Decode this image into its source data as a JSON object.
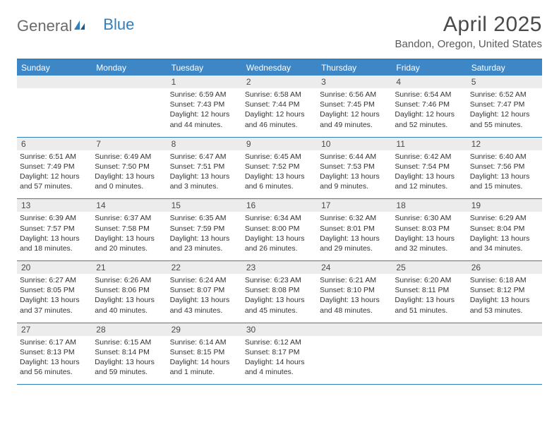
{
  "logo": {
    "part1": "General",
    "part2": "Blue"
  },
  "title": "April 2025",
  "location": "Bandon, Oregon, United States",
  "header_bg": "#3d87c7",
  "border_color": "#2f7fbf",
  "daynum_bg": "#ececec",
  "text_color": "#333333",
  "dow": [
    "Sunday",
    "Monday",
    "Tuesday",
    "Wednesday",
    "Thursday",
    "Friday",
    "Saturday"
  ],
  "weeks": [
    [
      {
        "n": "",
        "sr": "",
        "ss": "",
        "d1": "",
        "d2": ""
      },
      {
        "n": "",
        "sr": "",
        "ss": "",
        "d1": "",
        "d2": ""
      },
      {
        "n": "1",
        "sr": "Sunrise: 6:59 AM",
        "ss": "Sunset: 7:43 PM",
        "d1": "Daylight: 12 hours",
        "d2": "and 44 minutes."
      },
      {
        "n": "2",
        "sr": "Sunrise: 6:58 AM",
        "ss": "Sunset: 7:44 PM",
        "d1": "Daylight: 12 hours",
        "d2": "and 46 minutes."
      },
      {
        "n": "3",
        "sr": "Sunrise: 6:56 AM",
        "ss": "Sunset: 7:45 PM",
        "d1": "Daylight: 12 hours",
        "d2": "and 49 minutes."
      },
      {
        "n": "4",
        "sr": "Sunrise: 6:54 AM",
        "ss": "Sunset: 7:46 PM",
        "d1": "Daylight: 12 hours",
        "d2": "and 52 minutes."
      },
      {
        "n": "5",
        "sr": "Sunrise: 6:52 AM",
        "ss": "Sunset: 7:47 PM",
        "d1": "Daylight: 12 hours",
        "d2": "and 55 minutes."
      }
    ],
    [
      {
        "n": "6",
        "sr": "Sunrise: 6:51 AM",
        "ss": "Sunset: 7:49 PM",
        "d1": "Daylight: 12 hours",
        "d2": "and 57 minutes."
      },
      {
        "n": "7",
        "sr": "Sunrise: 6:49 AM",
        "ss": "Sunset: 7:50 PM",
        "d1": "Daylight: 13 hours",
        "d2": "and 0 minutes."
      },
      {
        "n": "8",
        "sr": "Sunrise: 6:47 AM",
        "ss": "Sunset: 7:51 PM",
        "d1": "Daylight: 13 hours",
        "d2": "and 3 minutes."
      },
      {
        "n": "9",
        "sr": "Sunrise: 6:45 AM",
        "ss": "Sunset: 7:52 PM",
        "d1": "Daylight: 13 hours",
        "d2": "and 6 minutes."
      },
      {
        "n": "10",
        "sr": "Sunrise: 6:44 AM",
        "ss": "Sunset: 7:53 PM",
        "d1": "Daylight: 13 hours",
        "d2": "and 9 minutes."
      },
      {
        "n": "11",
        "sr": "Sunrise: 6:42 AM",
        "ss": "Sunset: 7:54 PM",
        "d1": "Daylight: 13 hours",
        "d2": "and 12 minutes."
      },
      {
        "n": "12",
        "sr": "Sunrise: 6:40 AM",
        "ss": "Sunset: 7:56 PM",
        "d1": "Daylight: 13 hours",
        "d2": "and 15 minutes."
      }
    ],
    [
      {
        "n": "13",
        "sr": "Sunrise: 6:39 AM",
        "ss": "Sunset: 7:57 PM",
        "d1": "Daylight: 13 hours",
        "d2": "and 18 minutes."
      },
      {
        "n": "14",
        "sr": "Sunrise: 6:37 AM",
        "ss": "Sunset: 7:58 PM",
        "d1": "Daylight: 13 hours",
        "d2": "and 20 minutes."
      },
      {
        "n": "15",
        "sr": "Sunrise: 6:35 AM",
        "ss": "Sunset: 7:59 PM",
        "d1": "Daylight: 13 hours",
        "d2": "and 23 minutes."
      },
      {
        "n": "16",
        "sr": "Sunrise: 6:34 AM",
        "ss": "Sunset: 8:00 PM",
        "d1": "Daylight: 13 hours",
        "d2": "and 26 minutes."
      },
      {
        "n": "17",
        "sr": "Sunrise: 6:32 AM",
        "ss": "Sunset: 8:01 PM",
        "d1": "Daylight: 13 hours",
        "d2": "and 29 minutes."
      },
      {
        "n": "18",
        "sr": "Sunrise: 6:30 AM",
        "ss": "Sunset: 8:03 PM",
        "d1": "Daylight: 13 hours",
        "d2": "and 32 minutes."
      },
      {
        "n": "19",
        "sr": "Sunrise: 6:29 AM",
        "ss": "Sunset: 8:04 PM",
        "d1": "Daylight: 13 hours",
        "d2": "and 34 minutes."
      }
    ],
    [
      {
        "n": "20",
        "sr": "Sunrise: 6:27 AM",
        "ss": "Sunset: 8:05 PM",
        "d1": "Daylight: 13 hours",
        "d2": "and 37 minutes."
      },
      {
        "n": "21",
        "sr": "Sunrise: 6:26 AM",
        "ss": "Sunset: 8:06 PM",
        "d1": "Daylight: 13 hours",
        "d2": "and 40 minutes."
      },
      {
        "n": "22",
        "sr": "Sunrise: 6:24 AM",
        "ss": "Sunset: 8:07 PM",
        "d1": "Daylight: 13 hours",
        "d2": "and 43 minutes."
      },
      {
        "n": "23",
        "sr": "Sunrise: 6:23 AM",
        "ss": "Sunset: 8:08 PM",
        "d1": "Daylight: 13 hours",
        "d2": "and 45 minutes."
      },
      {
        "n": "24",
        "sr": "Sunrise: 6:21 AM",
        "ss": "Sunset: 8:10 PM",
        "d1": "Daylight: 13 hours",
        "d2": "and 48 minutes."
      },
      {
        "n": "25",
        "sr": "Sunrise: 6:20 AM",
        "ss": "Sunset: 8:11 PM",
        "d1": "Daylight: 13 hours",
        "d2": "and 51 minutes."
      },
      {
        "n": "26",
        "sr": "Sunrise: 6:18 AM",
        "ss": "Sunset: 8:12 PM",
        "d1": "Daylight: 13 hours",
        "d2": "and 53 minutes."
      }
    ],
    [
      {
        "n": "27",
        "sr": "Sunrise: 6:17 AM",
        "ss": "Sunset: 8:13 PM",
        "d1": "Daylight: 13 hours",
        "d2": "and 56 minutes."
      },
      {
        "n": "28",
        "sr": "Sunrise: 6:15 AM",
        "ss": "Sunset: 8:14 PM",
        "d1": "Daylight: 13 hours",
        "d2": "and 59 minutes."
      },
      {
        "n": "29",
        "sr": "Sunrise: 6:14 AM",
        "ss": "Sunset: 8:15 PM",
        "d1": "Daylight: 14 hours",
        "d2": "and 1 minute."
      },
      {
        "n": "30",
        "sr": "Sunrise: 6:12 AM",
        "ss": "Sunset: 8:17 PM",
        "d1": "Daylight: 14 hours",
        "d2": "and 4 minutes."
      },
      {
        "n": "",
        "sr": "",
        "ss": "",
        "d1": "",
        "d2": ""
      },
      {
        "n": "",
        "sr": "",
        "ss": "",
        "d1": "",
        "d2": ""
      },
      {
        "n": "",
        "sr": "",
        "ss": "",
        "d1": "",
        "d2": ""
      }
    ]
  ]
}
